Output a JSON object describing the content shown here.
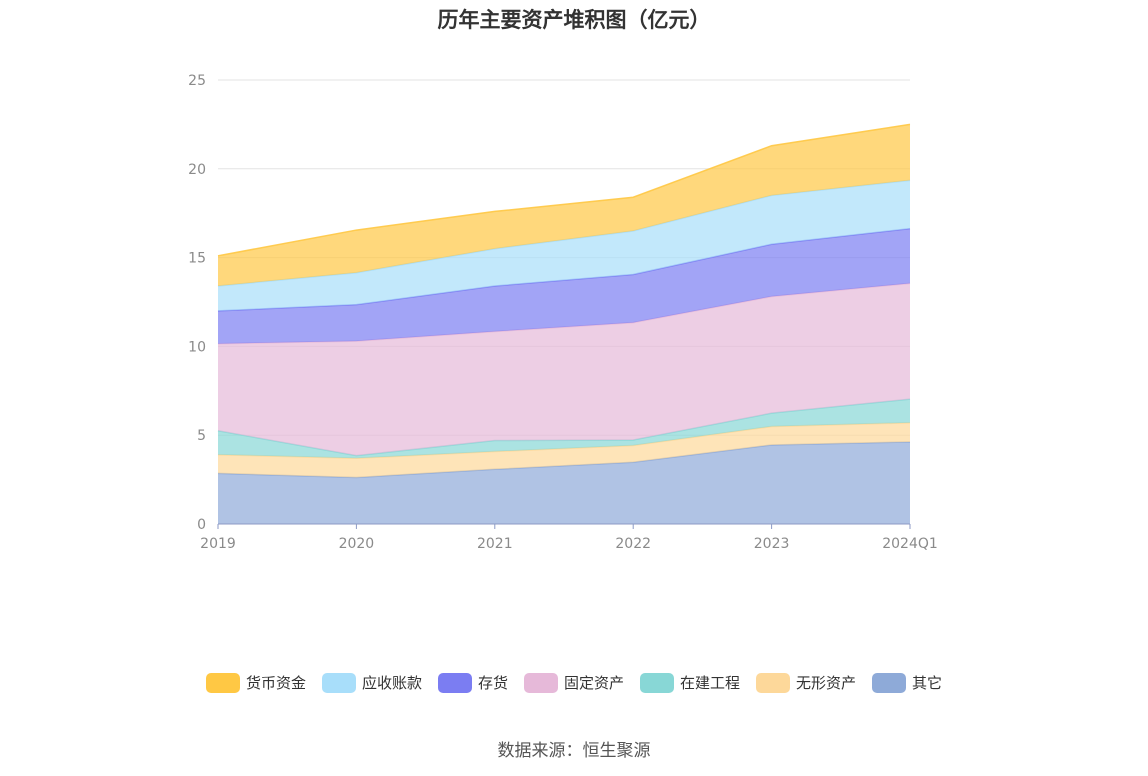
{
  "title": "历年主要资产堆积图（亿元）",
  "source": "数据来源：恒生聚源",
  "chart_data": {
    "type": "area",
    "stacked": true,
    "title": "历年主要资产堆积图（亿元）",
    "x": [
      "2019",
      "2020",
      "2021",
      "2022",
      "2023",
      "2024Q1"
    ],
    "ylim": [
      0,
      25
    ],
    "yticks": [
      0,
      5,
      10,
      15,
      20,
      25
    ],
    "grid": true,
    "legend": "bottom",
    "series": [
      {
        "name": "其它",
        "color": "#8eaad8",
        "values": [
          2.85,
          2.62,
          3.08,
          3.48,
          4.45,
          4.62
        ]
      },
      {
        "name": "无形资产",
        "color": "#fdd89a",
        "values": [
          1.05,
          1.08,
          1.0,
          0.94,
          1.04,
          1.08
        ]
      },
      {
        "name": "在建工程",
        "color": "#88d7d6",
        "values": [
          1.35,
          0.15,
          0.62,
          0.31,
          0.75,
          1.33
        ]
      },
      {
        "name": "固定资产",
        "color": "#e6b9d9",
        "values": [
          4.9,
          6.45,
          6.14,
          6.61,
          6.57,
          6.52
        ]
      },
      {
        "name": "存货",
        "color": "#7b7df2",
        "values": [
          1.85,
          2.05,
          2.56,
          2.71,
          2.94,
          3.08
        ]
      },
      {
        "name": "应收账款",
        "color": "#a8defa",
        "values": [
          1.4,
          1.8,
          2.1,
          2.45,
          2.75,
          2.72
        ]
      },
      {
        "name": "货币资金",
        "color": "#ffc844",
        "values": [
          1.7,
          2.4,
          2.1,
          1.9,
          2.8,
          3.15
        ]
      }
    ],
    "legend_order": [
      "货币资金",
      "应收账款",
      "存货",
      "固定资产",
      "在建工程",
      "无形资产",
      "其它"
    ]
  }
}
